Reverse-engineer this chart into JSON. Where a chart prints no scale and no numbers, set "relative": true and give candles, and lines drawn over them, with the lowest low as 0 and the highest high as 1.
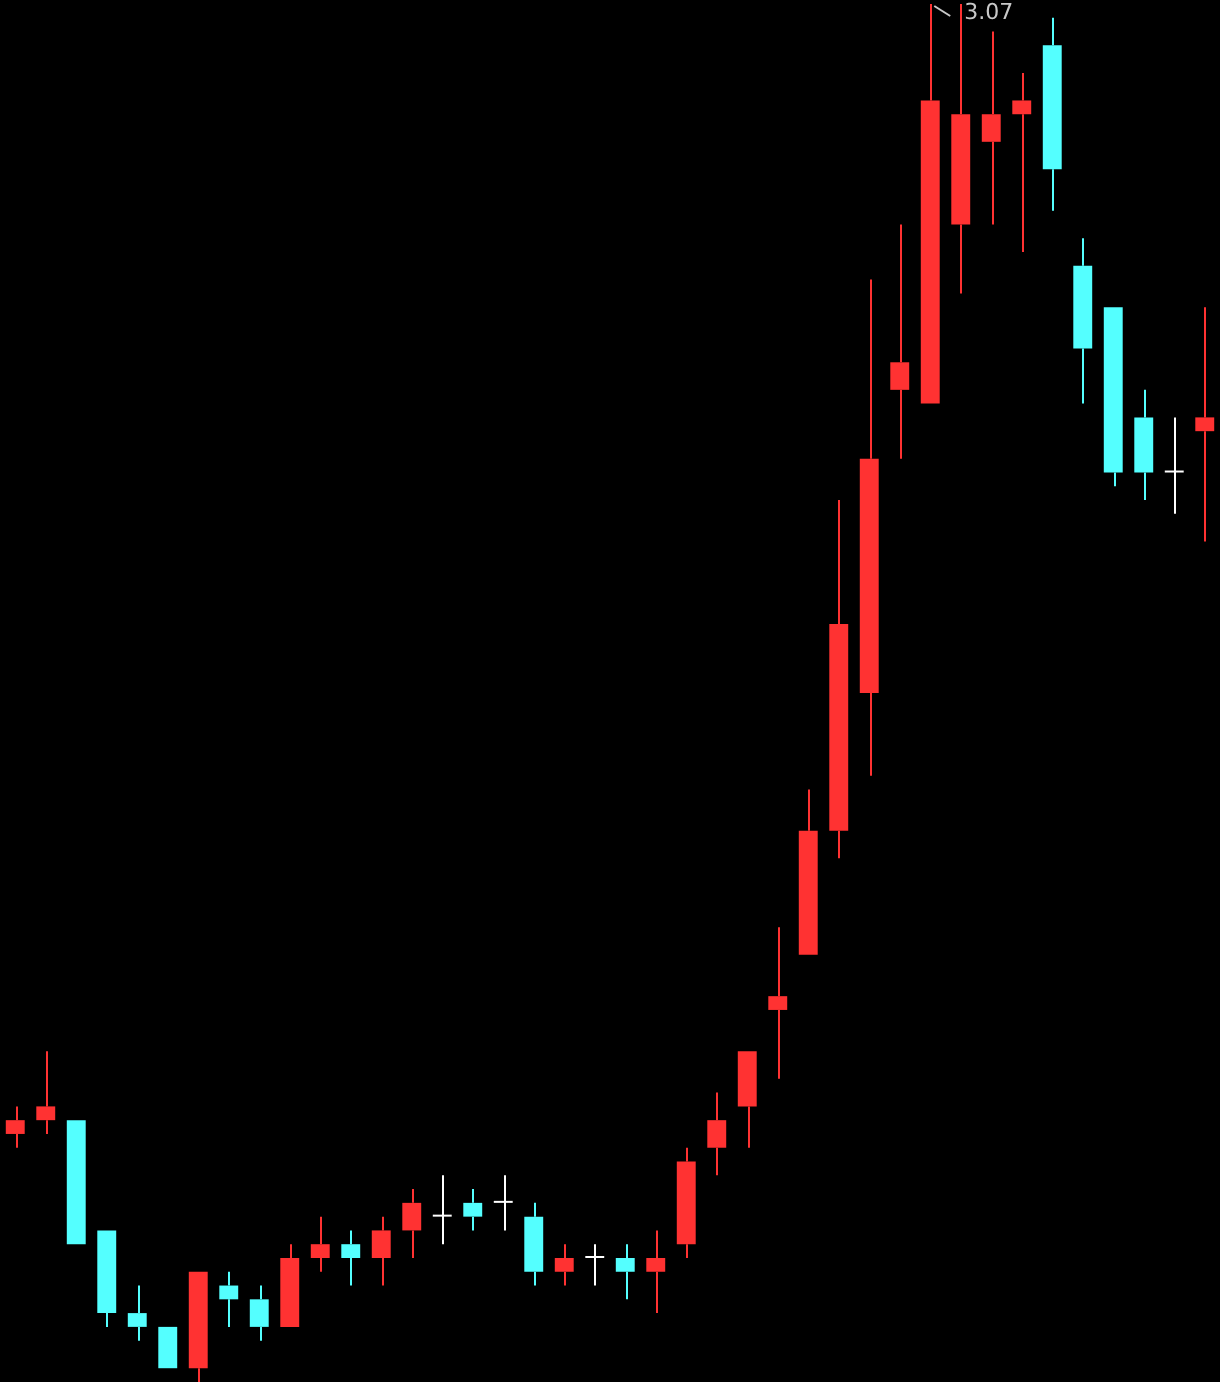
{
  "chart_data": {
    "type": "candlestick",
    "relative": true,
    "categories": [
      null,
      null,
      null,
      null,
      null,
      null,
      null,
      null,
      null,
      null,
      null,
      null,
      null,
      null,
      null,
      null,
      null,
      null,
      null,
      null,
      null,
      null,
      null,
      null,
      null,
      null,
      null,
      null,
      null,
      null,
      null,
      null,
      null,
      null,
      null,
      null,
      null,
      null,
      null,
      null
    ],
    "ohlc": [
      [
        0.18,
        0.2,
        0.17,
        0.19
      ],
      [
        0.19,
        0.24,
        0.18,
        0.2
      ],
      [
        0.19,
        0.19,
        0.1,
        0.1
      ],
      [
        0.11,
        0.11,
        0.04,
        0.05
      ],
      [
        0.05,
        0.07,
        0.03,
        0.04
      ],
      [
        0.04,
        0.04,
        0.01,
        0.01
      ],
      [
        0.01,
        0.08,
        0,
        0.08
      ],
      [
        0.07,
        0.08,
        0.04,
        0.06
      ],
      [
        0.06,
        0.07,
        0.03,
        0.04
      ],
      [
        0.04,
        0.1,
        0.04,
        0.09
      ],
      [
        0.09,
        0.12,
        0.08,
        0.1
      ],
      [
        0.1,
        0.11,
        0.07,
        0.09
      ],
      [
        0.09,
        0.12,
        0.07,
        0.11
      ],
      [
        0.11,
        0.14,
        0.09,
        0.13
      ],
      [
        0.12,
        0.15,
        0.1,
        0.12
      ],
      [
        0.13,
        0.14,
        0.11,
        0.12
      ],
      [
        0.13,
        0.15,
        0.11,
        0.13
      ],
      [
        0.12,
        0.13,
        0.07,
        0.08
      ],
      [
        0.08,
        0.1,
        0.07,
        0.09
      ],
      [
        0.09,
        0.1,
        0.07,
        0.09
      ],
      [
        0.09,
        0.1,
        0.06,
        0.08
      ],
      [
        0.08,
        0.11,
        0.05,
        0.09
      ],
      [
        0.1,
        0.17,
        0.09,
        0.16
      ],
      [
        0.17,
        0.21,
        0.15,
        0.19
      ],
      [
        0.2,
        0.24,
        0.17,
        0.24
      ],
      [
        0.27,
        0.33,
        0.22,
        0.28
      ],
      [
        0.31,
        0.43,
        0.31,
        0.4
      ],
      [
        0.4,
        0.64,
        0.38,
        0.55
      ],
      [
        0.5,
        0.8,
        0.44,
        0.67
      ],
      [
        0.72,
        0.84,
        0.67,
        0.74
      ],
      [
        0.71,
        1,
        0.71,
        0.93
      ],
      [
        0.84,
        1,
        0.79,
        0.92
      ],
      [
        0.9,
        0.98,
        0.84,
        0.92
      ],
      [
        0.92,
        0.95,
        0.82,
        0.93
      ],
      [
        0.97,
        0.99,
        0.85,
        0.88
      ],
      [
        0.81,
        0.83,
        0.71,
        0.75
      ],
      [
        0.78,
        0.78,
        0.65,
        0.66
      ],
      [
        0.7,
        0.72,
        0.64,
        0.66
      ],
      [
        0.66,
        0.7,
        0.63,
        0.66
      ],
      [
        0.69,
        0.78,
        0.61,
        0.7
      ]
    ],
    "colors": [
      "#ff3232",
      "#ff3232",
      "#54ffff",
      "#54ffff",
      "#54ffff",
      "#54ffff",
      "#ff3232",
      "#54ffff",
      "#54ffff",
      "#ff3232",
      "#ff3232",
      "#54ffff",
      "#ff3232",
      "#ff3232",
      "#ffffff",
      "#54ffff",
      "#ffffff",
      "#54ffff",
      "#ff3232",
      "#ffffff",
      "#54ffff",
      "#ff3232",
      "#ff3232",
      "#ff3232",
      "#ff3232",
      "#ff3232",
      "#ff3232",
      "#ff3232",
      "#ff3232",
      "#ff3232",
      "#ff3232",
      "#ff3232",
      "#ff3232",
      "#ff3232",
      "#54ffff",
      "#54ffff",
      "#54ffff",
      "#54ffff",
      "#ffffff",
      "#ff3232"
    ],
    "annotations": [
      "3.07"
    ]
  }
}
